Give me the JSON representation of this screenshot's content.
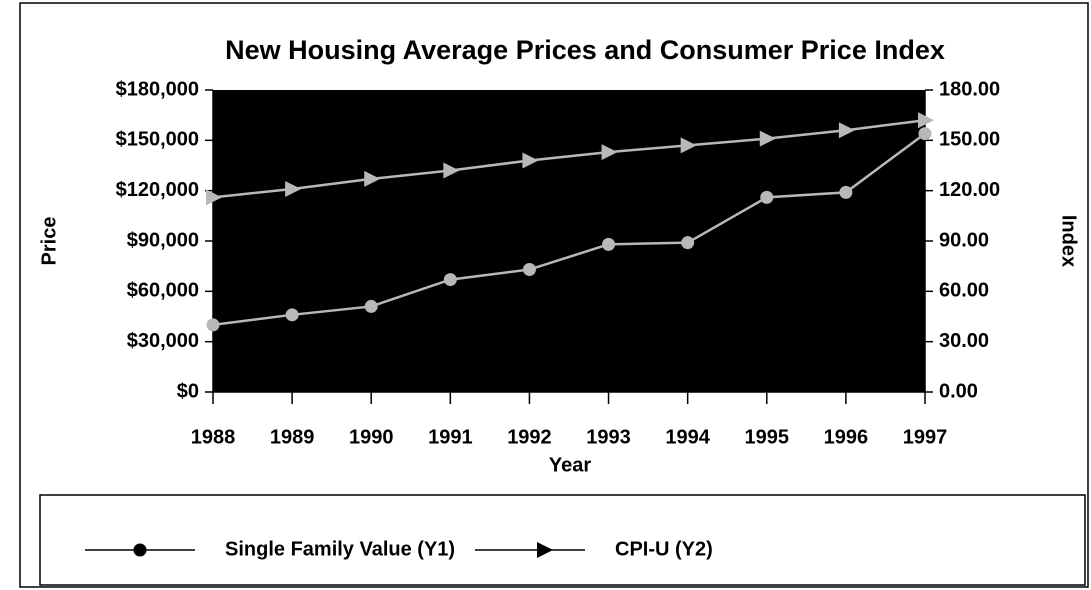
{
  "chart_data": {
    "type": "line",
    "title": "New Housing Average Prices and Consumer Price Index",
    "x_label": "Year",
    "y_label": "Price",
    "y2_label": "Index",
    "categories": [
      "1988",
      "1989",
      "1990",
      "1991",
      "1992",
      "1993",
      "1994",
      "1995",
      "1996",
      "1997"
    ],
    "series": [
      {
        "name": "Single Family Value (Y1)",
        "color": "#b8b8b8",
        "marker": "circle",
        "values": [
          40000,
          46000,
          51000,
          67000,
          73000,
          88000,
          89000,
          116000,
          119000,
          154000
        ]
      },
      {
        "name": "CPI-U (Y2)",
        "color": "#b8b8b8",
        "marker": "triangle",
        "axis": "y2",
        "values": [
          116,
          121,
          127,
          132,
          138,
          143,
          147,
          151,
          156,
          162
        ]
      }
    ],
    "ylim": [
      0,
      180000
    ],
    "yticks": [
      {
        "value": 0,
        "label": "$0"
      },
      {
        "value": 30000,
        "label": "$30,000"
      },
      {
        "value": 60000,
        "label": "$60,000"
      },
      {
        "value": 90000,
        "label": "$90,000"
      },
      {
        "value": 120000,
        "label": "$120,000"
      },
      {
        "value": 150000,
        "label": "$150,000"
      },
      {
        "value": 180000,
        "label": "$180,000"
      }
    ],
    "y2lim": [
      0,
      180
    ],
    "y2ticks": [
      {
        "value": 0,
        "label": "0.00"
      },
      {
        "value": 30,
        "label": "30.00"
      },
      {
        "value": 60,
        "label": "60.00"
      },
      {
        "value": 90,
        "label": "90.00"
      },
      {
        "value": 120,
        "label": "120.00"
      },
      {
        "value": 150,
        "label": "150.00"
      },
      {
        "value": 180,
        "label": "180.00"
      }
    ],
    "legend": "bottom"
  }
}
